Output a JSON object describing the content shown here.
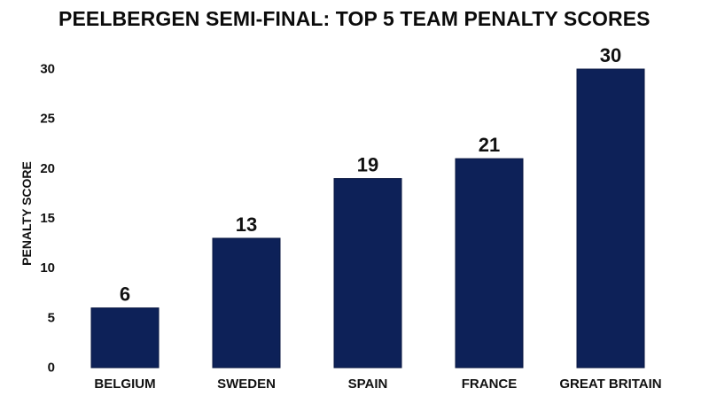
{
  "chart_data": {
    "type": "bar",
    "title": "PEELBERGEN SEMI-FINAL: TOP 5 TEAM PENALTY SCORES",
    "xlabel": "",
    "ylabel": "PENALTY SCORE",
    "categories": [
      "BELGIUM",
      "SWEDEN",
      "SPAIN",
      "FRANCE",
      "GREAT BRITAIN"
    ],
    "values": [
      6,
      13,
      19,
      21,
      30
    ],
    "value_labels": [
      "6",
      "13",
      "19",
      "21",
      "30"
    ],
    "ylim": [
      0,
      30
    ],
    "yticks": [
      0,
      5,
      10,
      15,
      20,
      25,
      30
    ],
    "ytick_labels": [
      "0",
      "5",
      "10",
      "15",
      "20",
      "25",
      "30"
    ],
    "grid": false,
    "legend": "none",
    "bar_color": "#0d2158"
  }
}
